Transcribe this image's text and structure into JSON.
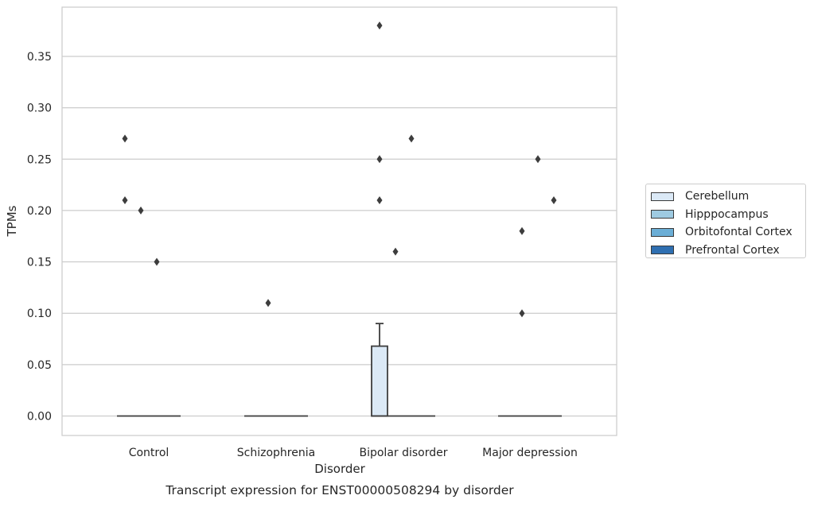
{
  "chart_data": {
    "type": "box",
    "title": "Transcript expression for ENST00000508294 by disorder",
    "xlabel": "Disorder",
    "ylabel": "TPMs",
    "ylim": [
      -0.018,
      0.398
    ],
    "yticks": [
      "0.00",
      "0.05",
      "0.10",
      "0.15",
      "0.20",
      "0.25",
      "0.30",
      "0.35"
    ],
    "categories": [
      "Control",
      "Schizophrenia",
      "Bipolar disorder",
      "Major depression"
    ],
    "grid": "horizontal",
    "legend_position": "right",
    "series": [
      {
        "name": "Cerebellum",
        "color": "#dbe9f6",
        "boxes": [
          {
            "q1": 0,
            "median": 0,
            "q3": 0,
            "whisker_low": 0,
            "whisker_high": 0,
            "outliers": [
              0.27,
              0.21
            ]
          },
          {
            "q1": 0,
            "median": 0,
            "q3": 0,
            "whisker_low": 0,
            "whisker_high": 0,
            "outliers": []
          },
          {
            "q1": 0,
            "median": 0,
            "q3": 0.068,
            "whisker_low": 0,
            "whisker_high": 0.09,
            "outliers": [
              0.38,
              0.25,
              0.21
            ]
          },
          {
            "q1": 0,
            "median": 0,
            "q3": 0,
            "whisker_low": 0,
            "whisker_high": 0,
            "outliers": []
          }
        ]
      },
      {
        "name": "Hipppocampus",
        "color": "#9ecae1",
        "boxes": [
          {
            "q1": 0,
            "median": 0,
            "q3": 0,
            "whisker_low": 0,
            "whisker_high": 0,
            "outliers": [
              0.2
            ]
          },
          {
            "q1": 0,
            "median": 0,
            "q3": 0,
            "whisker_low": 0,
            "whisker_high": 0,
            "outliers": [
              0.11
            ]
          },
          {
            "q1": 0,
            "median": 0,
            "q3": 0,
            "whisker_low": 0,
            "whisker_high": 0,
            "outliers": [
              0.16
            ]
          },
          {
            "q1": 0,
            "median": 0,
            "q3": 0,
            "whisker_low": 0,
            "whisker_high": 0,
            "outliers": [
              0.18,
              0.1
            ]
          }
        ]
      },
      {
        "name": "Orbitofontal Cortex",
        "color": "#6baed6",
        "boxes": [
          {
            "q1": 0,
            "median": 0,
            "q3": 0,
            "whisker_low": 0,
            "whisker_high": 0,
            "outliers": [
              0.15
            ]
          },
          {
            "q1": 0,
            "median": 0,
            "q3": 0,
            "whisker_low": 0,
            "whisker_high": 0,
            "outliers": []
          },
          {
            "q1": 0,
            "median": 0,
            "q3": 0,
            "whisker_low": 0,
            "whisker_high": 0,
            "outliers": [
              0.27
            ]
          },
          {
            "q1": 0,
            "median": 0,
            "q3": 0,
            "whisker_low": 0,
            "whisker_high": 0,
            "outliers": [
              0.25
            ]
          }
        ]
      },
      {
        "name": "Prefrontal Cortex",
        "color": "#2f6fb1",
        "boxes": [
          {
            "q1": 0,
            "median": 0,
            "q3": 0,
            "whisker_low": 0,
            "whisker_high": 0,
            "outliers": []
          },
          {
            "q1": 0,
            "median": 0,
            "q3": 0,
            "whisker_low": 0,
            "whisker_high": 0,
            "outliers": []
          },
          {
            "q1": 0,
            "median": 0,
            "q3": 0,
            "whisker_low": 0,
            "whisker_high": 0,
            "outliers": []
          },
          {
            "q1": 0,
            "median": 0,
            "q3": 0,
            "whisker_low": 0,
            "whisker_high": 0,
            "outliers": [
              0.21
            ]
          }
        ]
      }
    ]
  }
}
